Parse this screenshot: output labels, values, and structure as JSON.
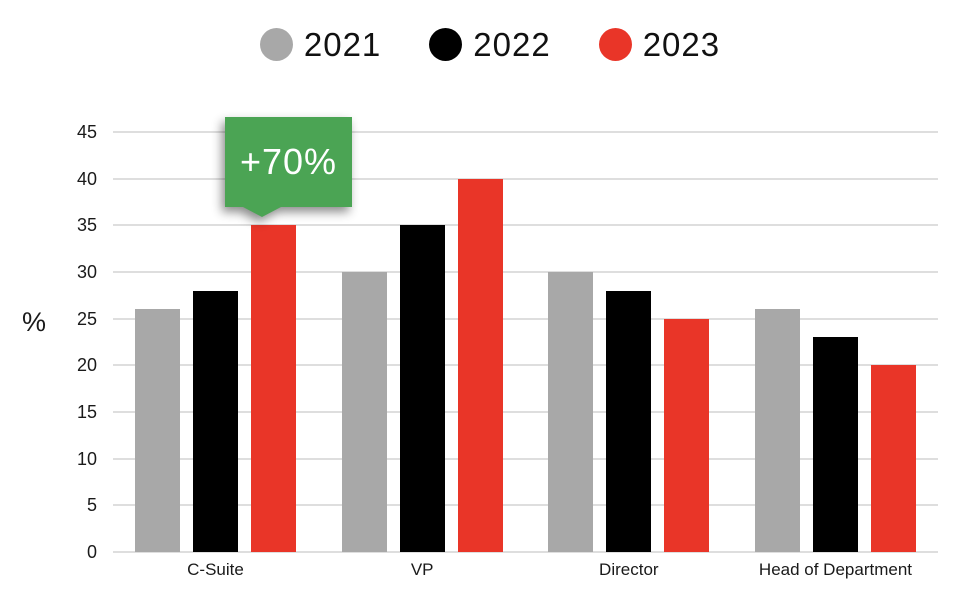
{
  "chart_data": {
    "type": "bar",
    "categories": [
      "C-Suite",
      "VP",
      "Director",
      "Head of Department"
    ],
    "series": [
      {
        "name": "2021",
        "color": "#A8A8A8",
        "values": [
          26,
          30,
          30,
          26
        ]
      },
      {
        "name": "2022",
        "color": "#000000",
        "values": [
          28,
          35,
          28,
          23
        ]
      },
      {
        "name": "2023",
        "color": "#E93528",
        "values": [
          35,
          40,
          25,
          20
        ]
      }
    ],
    "title": "",
    "xlabel": "",
    "ylabel": "%",
    "ylim": [
      0,
      45
    ],
    "ytick_step": 5,
    "grid": "horizontal",
    "legend_position": "top-center",
    "annotation": {
      "text": "+70%",
      "target_category": "C-Suite",
      "target_series": "2023",
      "bg_color": "#4BA454",
      "text_color": "#FFFFFF"
    }
  },
  "colors": {
    "gridline": "#DEDEDE",
    "axis_text": "#1A1A1A",
    "background": "#FFFFFF"
  }
}
